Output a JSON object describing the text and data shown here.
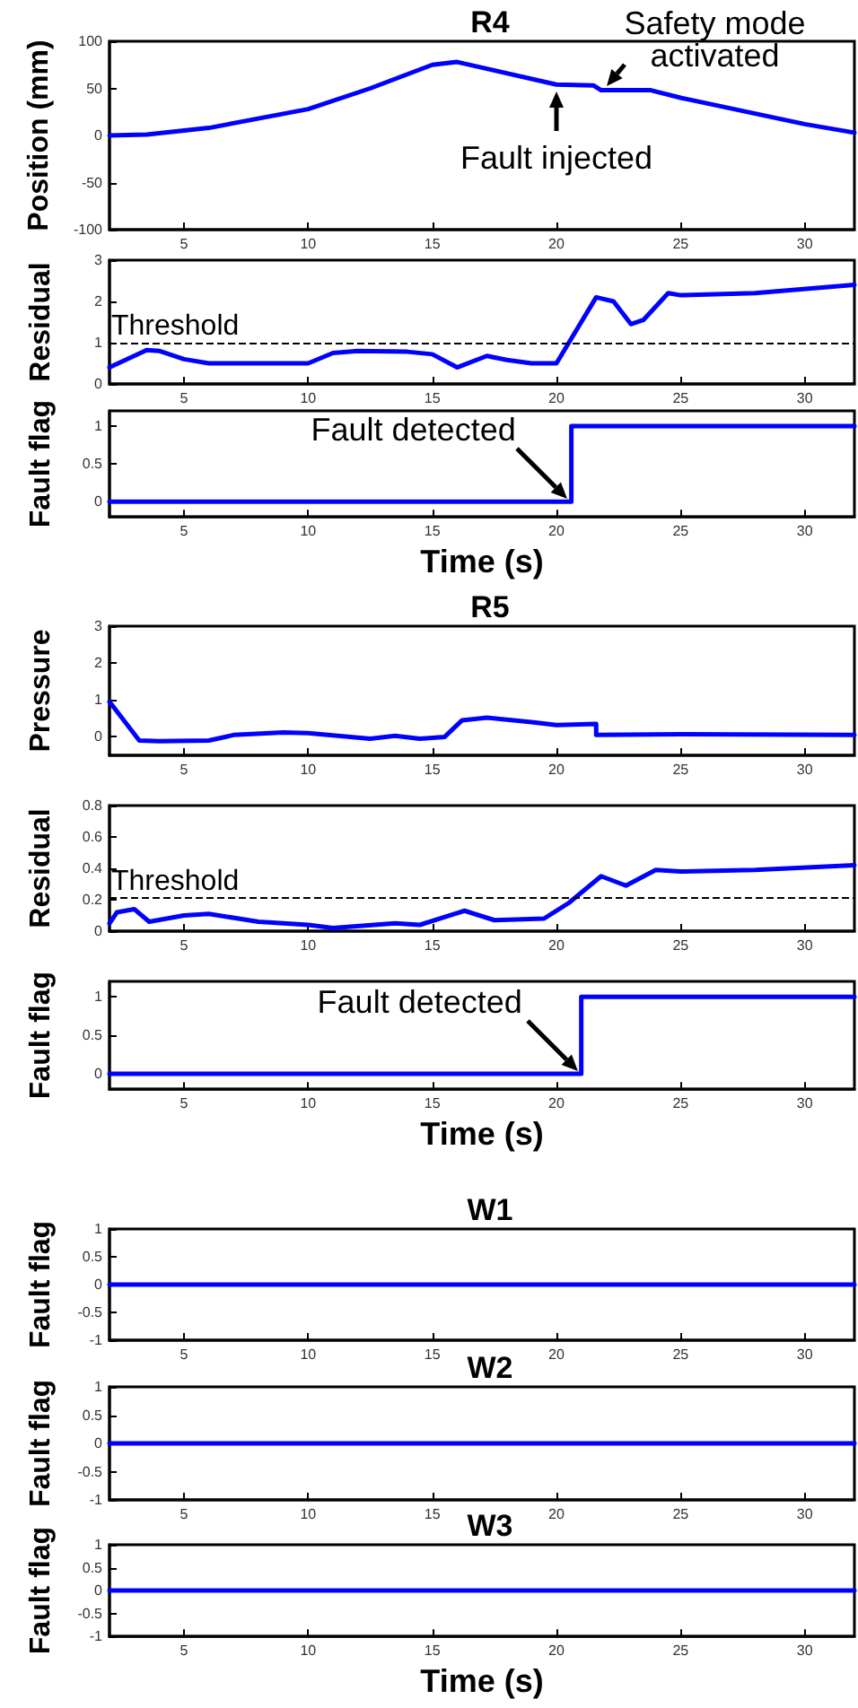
{
  "chart_data": [
    {
      "type": "line",
      "title": "R4",
      "ylabel": "Position (mm)",
      "xlim": [
        2,
        32
      ],
      "xticks": [
        5,
        10,
        15,
        20,
        25,
        30
      ],
      "ylim": [
        -100,
        100
      ],
      "yticks": [
        -100,
        -50,
        0,
        50,
        100
      ],
      "series": [
        {
          "color": "#0000ff",
          "x": [
            2,
            3.5,
            6,
            10,
            12.5,
            15,
            16,
            17,
            20,
            21.5,
            21.8,
            23.8,
            25,
            30,
            32
          ],
          "values": [
            0,
            1,
            8,
            28,
            50,
            75,
            78,
            72,
            54,
            53,
            48,
            48,
            40,
            12,
            3
          ]
        }
      ],
      "annotations": [
        {
          "text": "Fault injected",
          "x": 20,
          "y": 52
        },
        {
          "text": "Safety mode\nactivated",
          "x": 21.9,
          "y": 49
        }
      ]
    },
    {
      "type": "line",
      "ylabel": "Residual",
      "xlim": [
        2,
        32
      ],
      "xticks": [
        5,
        10,
        15,
        20,
        25,
        30
      ],
      "ylim": [
        0,
        3
      ],
      "yticks": [
        0,
        1,
        2,
        3
      ],
      "series": [
        {
          "color": "#0000ff",
          "x": [
            2,
            3.5,
            4,
            5,
            6,
            10,
            11,
            12,
            14,
            15,
            16,
            17.2,
            18,
            19,
            20,
            21.6,
            22.3,
            23,
            23.5,
            24.5,
            25,
            28,
            32
          ],
          "values": [
            0.4,
            0.82,
            0.8,
            0.6,
            0.5,
            0.5,
            0.75,
            0.8,
            0.78,
            0.72,
            0.4,
            0.68,
            0.58,
            0.5,
            0.5,
            2.1,
            2.0,
            1.45,
            1.55,
            2.2,
            2.15,
            2.2,
            2.4
          ]
        }
      ],
      "ref_lines": [
        {
          "axis": "y",
          "value": 1,
          "label": "Threshold",
          "line_style": "dashed",
          "color": "#000000"
        }
      ]
    },
    {
      "type": "line",
      "ylabel": "Fault flag",
      "xlabel": "Time (s)",
      "xlim": [
        2,
        32
      ],
      "xticks": [
        5,
        10,
        15,
        20,
        25,
        30
      ],
      "ylim": [
        -0.2,
        1.2
      ],
      "yticks": [
        0,
        0.5,
        1
      ],
      "series": [
        {
          "color": "#0000ff",
          "x": [
            2,
            20.6,
            20.6,
            32
          ],
          "values": [
            0,
            0,
            1,
            1
          ]
        }
      ],
      "annotations": [
        {
          "text": "Fault detected",
          "x": 20.6,
          "y": 0
        }
      ]
    },
    {
      "type": "line",
      "title": "R5",
      "ylabel": "Pressure",
      "xlim": [
        2,
        32
      ],
      "xticks": [
        5,
        10,
        15,
        20,
        25,
        30
      ],
      "ylim": [
        -0.5,
        3
      ],
      "yticks": [
        0,
        1,
        2,
        3
      ],
      "series": [
        {
          "color": "#0000ff",
          "x": [
            2,
            3.2,
            4,
            6,
            7,
            9,
            10,
            12.5,
            13.5,
            14.5,
            15.5,
            16.2,
            17.2,
            19,
            20,
            21.6,
            21.6,
            25,
            32
          ],
          "values": [
            0.95,
            -0.1,
            -0.12,
            -0.1,
            0.05,
            0.12,
            0.1,
            -0.05,
            0.03,
            -0.05,
            0,
            0.45,
            0.52,
            0.4,
            0.32,
            0.35,
            0.05,
            0.07,
            0.05
          ]
        }
      ]
    },
    {
      "type": "line",
      "ylabel": "Residual",
      "xlim": [
        2,
        32
      ],
      "xticks": [
        5,
        10,
        15,
        20,
        25,
        30
      ],
      "ylim": [
        0,
        0.8
      ],
      "yticks": [
        0,
        0.2,
        0.4,
        0.6,
        0.8
      ],
      "series": [
        {
          "color": "#0000ff",
          "x": [
            2,
            2.3,
            3,
            3.6,
            5,
            6,
            8,
            10,
            11,
            13.5,
            14.5,
            16.3,
            17.5,
            19.5,
            20.5,
            21.8,
            22.8,
            24,
            25,
            28,
            32
          ],
          "values": [
            0.05,
            0.12,
            0.14,
            0.06,
            0.1,
            0.11,
            0.06,
            0.04,
            0.02,
            0.05,
            0.04,
            0.13,
            0.07,
            0.08,
            0.18,
            0.35,
            0.29,
            0.39,
            0.38,
            0.39,
            0.42
          ]
        }
      ],
      "ref_lines": [
        {
          "axis": "y",
          "value": 0.21,
          "label": "Threshold",
          "line_style": "dashed",
          "color": "#000000"
        }
      ]
    },
    {
      "type": "line",
      "ylabel": "Fault flag",
      "xlabel": "Time (s)",
      "xlim": [
        2,
        32
      ],
      "xticks": [
        5,
        10,
        15,
        20,
        25,
        30
      ],
      "ylim": [
        -0.2,
        1.2
      ],
      "yticks": [
        0,
        0.5,
        1
      ],
      "series": [
        {
          "color": "#0000ff",
          "x": [
            2,
            21,
            21,
            32
          ],
          "values": [
            0,
            0,
            1,
            1
          ]
        }
      ],
      "annotations": [
        {
          "text": "Fault detected",
          "x": 21,
          "y": 0
        }
      ]
    },
    {
      "type": "line",
      "title": "W1",
      "ylabel": "Fault flag",
      "xlim": [
        2,
        32
      ],
      "xticks": [
        5,
        10,
        15,
        20,
        25,
        30
      ],
      "ylim": [
        -1,
        1
      ],
      "yticks": [
        -1,
        -0.5,
        0,
        0.5,
        1
      ],
      "series": [
        {
          "color": "#0000ff",
          "x": [
            2,
            32
          ],
          "values": [
            0,
            0
          ]
        }
      ]
    },
    {
      "type": "line",
      "title": "W2",
      "ylabel": "Fault flag",
      "xlim": [
        2,
        32
      ],
      "xticks": [
        5,
        10,
        15,
        20,
        25,
        30
      ],
      "ylim": [
        -1,
        1
      ],
      "yticks": [
        -1,
        -0.5,
        0,
        0.5,
        1
      ],
      "series": [
        {
          "color": "#0000ff",
          "x": [
            2,
            32
          ],
          "values": [
            0,
            0
          ]
        }
      ]
    },
    {
      "type": "line",
      "title": "W3",
      "ylabel": "Fault flag",
      "xlabel": "Time (s)",
      "xlim": [
        2,
        32
      ],
      "xticks": [
        5,
        10,
        15,
        20,
        25,
        30
      ],
      "ylim": [
        -1,
        1
      ],
      "yticks": [
        -1,
        -0.5,
        0,
        0.5,
        1
      ],
      "series": [
        {
          "color": "#0000ff",
          "x": [
            2,
            32
          ],
          "values": [
            0,
            0
          ]
        }
      ]
    }
  ]
}
